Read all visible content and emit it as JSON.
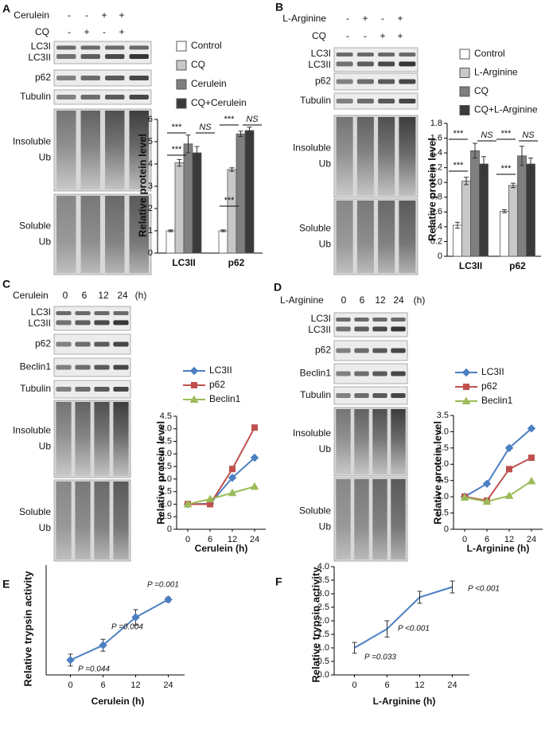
{
  "chart_data": [
    {
      "panel": "A",
      "type": "bar",
      "ylabel": "Relative protein level",
      "categories": [
        "LC3II",
        "p62"
      ],
      "series": [
        {
          "name": "Control",
          "color": "#ffffff",
          "values": [
            1.0,
            1.0
          ],
          "errors": [
            0.04,
            0.04
          ]
        },
        {
          "name": "CQ",
          "color": "#c8c8c8",
          "values": [
            4.05,
            3.75
          ],
          "errors": [
            0.15,
            0.08
          ]
        },
        {
          "name": "Cerulein",
          "color": "#7f7f7f",
          "values": [
            4.9,
            5.35
          ],
          "errors": [
            0.4,
            0.12
          ]
        },
        {
          "name": "CQ+Cerulein",
          "color": "#3a3a3a",
          "values": [
            4.5,
            5.5
          ],
          "errors": [
            0.28,
            0.15
          ]
        }
      ],
      "ylim": [
        0,
        6
      ],
      "yticks": [
        0,
        1,
        2,
        3,
        4,
        5,
        6
      ],
      "annotations": [
        "***",
        "***",
        "NS",
        "***",
        "***",
        "NS"
      ]
    },
    {
      "panel": "B",
      "type": "bar",
      "ylabel": "Relative protein level",
      "categories": [
        "LC3II",
        "p62"
      ],
      "series": [
        {
          "name": "Control",
          "color": "#ffffff",
          "values": [
            0.42,
            0.61
          ],
          "errors": [
            0.04,
            0.02
          ]
        },
        {
          "name": "L-Arginine",
          "color": "#c8c8c8",
          "values": [
            1.02,
            0.96
          ],
          "errors": [
            0.05,
            0.03
          ]
        },
        {
          "name": "CQ",
          "color": "#7f7f7f",
          "values": [
            1.43,
            1.36
          ],
          "errors": [
            0.1,
            0.13
          ]
        },
        {
          "name": "CQ+L-Arginine",
          "color": "#3a3a3a",
          "values": [
            1.25,
            1.25
          ],
          "errors": [
            0.1,
            0.08
          ]
        }
      ],
      "ylim": [
        0,
        1.8
      ],
      "yticks": [
        0,
        0.2,
        0.4,
        0.6,
        0.8,
        {
          "value": 1,
          "label": "1.0"
        },
        1.2,
        1.4,
        1.6,
        1.8
      ],
      "annotations": [
        "***",
        "***",
        "NS",
        "***",
        "***",
        "NS"
      ]
    },
    {
      "panel": "C",
      "type": "line",
      "ylabel": "Relative protein level",
      "xlabel": "Cerulein (h)",
      "categories": [
        "0",
        "6",
        "12",
        "24"
      ],
      "series": [
        {
          "name": "LC3II",
          "color": "#4a7fc1",
          "marker": "diamond",
          "values": [
            1.0,
            1.02,
            2.05,
            2.85
          ]
        },
        {
          "name": "p62",
          "color": "#c0504d",
          "marker": "square",
          "values": [
            1.0,
            1.0,
            2.4,
            4.05
          ]
        },
        {
          "name": "Beclin1",
          "color": "#9bbb59",
          "marker": "triangle",
          "values": [
            1.0,
            1.2,
            1.45,
            1.7
          ]
        }
      ],
      "ylim": [
        0,
        4.5
      ],
      "yticks": [
        0,
        0.5,
        {
          "value": 1,
          "label": "1.0"
        },
        1.5,
        {
          "value": 2,
          "label": "2.0"
        },
        2.5,
        {
          "value": 3,
          "label": "3.0"
        },
        3.5,
        {
          "value": 4,
          "label": "4.0"
        },
        4.5
      ]
    },
    {
      "panel": "D",
      "type": "line",
      "ylabel": "Relative protein level",
      "xlabel": "L-Arginine (h)",
      "categories": [
        "0",
        "6",
        "12",
        "24"
      ],
      "series": [
        {
          "name": "LC3II",
          "color": "#4a7fc1",
          "marker": "diamond",
          "values": [
            1.0,
            1.4,
            2.5,
            3.1
          ]
        },
        {
          "name": "p62",
          "color": "#c0504d",
          "marker": "square",
          "values": [
            1.0,
            0.88,
            1.85,
            2.2
          ]
        },
        {
          "name": "Beclin1",
          "color": "#9bbb59",
          "marker": "triangle",
          "values": [
            0.98,
            0.85,
            1.03,
            1.48
          ]
        }
      ],
      "ylim": [
        0,
        3.5
      ],
      "yticks": [
        0,
        0.5,
        {
          "value": 1,
          "label": "1.0"
        },
        1.5,
        {
          "value": 2,
          "label": "2.0"
        },
        2.5,
        {
          "value": 3,
          "label": "3.0"
        },
        3.5
      ]
    },
    {
      "panel": "E",
      "type": "line",
      "ylabel": "Relative trypsin activity",
      "xlabel": "Cerulein (h)",
      "categories": [
        "0",
        "6",
        "12",
        "24"
      ],
      "series": [
        {
          "color": "#4a7fc1",
          "marker": "diamond",
          "values": [
            1.0,
            1.25,
            1.72,
            2.02
          ],
          "errors": [
            0.1,
            0.1,
            0.13,
            0.04
          ]
        }
      ],
      "ylim": [
        0.75,
        2.6
      ],
      "annotations": [
        "P =0.044",
        "P =0.004",
        "P =0.001"
      ]
    },
    {
      "panel": "F",
      "type": "line",
      "ylabel": "Relative trypsin activity",
      "xlabel": "L-Arginine (h)",
      "categories": [
        "0",
        "6",
        "12",
        "24"
      ],
      "series": [
        {
          "color": "#4a7fc1",
          "marker": "none",
          "values": [
            1.0,
            1.7,
            2.87,
            3.25
          ],
          "errors": [
            0.2,
            0.3,
            0.22,
            0.22
          ]
        }
      ],
      "ylim": [
        0,
        4
      ],
      "yticks": [
        {
          "value": 0,
          "label": "0.0"
        },
        0.5,
        {
          "value": 1,
          "label": "1.0"
        },
        1.5,
        {
          "value": 2,
          "label": "2.0"
        },
        2.5,
        {
          "value": 3,
          "label": "3.0"
        },
        3.5,
        {
          "value": 4,
          "label": "4.0"
        }
      ],
      "annotations": [
        "P =0.033",
        "P <0.001",
        "P <0.001"
      ]
    }
  ],
  "blots": [
    {
      "treatments": [
        {
          "name": "Cerulein",
          "lanes": [
            "-",
            "-",
            "+",
            "+"
          ]
        },
        {
          "name": "CQ",
          "lanes": [
            "-",
            "+",
            "-",
            "+"
          ]
        }
      ],
      "rows": [
        [
          "LC3I",
          "LC3II"
        ],
        [
          "p62"
        ],
        [
          "Tubulin"
        ],
        [
          "Insoluble",
          "Ub"
        ],
        [
          "Soluble",
          "Ub"
        ]
      ]
    },
    {
      "treatments": [
        {
          "name": "L-Arginine",
          "lanes": [
            "-",
            "+",
            "-",
            "+"
          ]
        },
        {
          "name": "CQ",
          "lanes": [
            "-",
            "-",
            "+",
            "+"
          ]
        }
      ],
      "rows": [
        [
          "LC3I",
          "LC3II"
        ],
        [
          "p62"
        ],
        [
          "Tubulin"
        ],
        [
          "Insoluble",
          "Ub"
        ],
        [
          "Soluble",
          "Ub"
        ]
      ]
    },
    {
      "treatments": [
        {
          "name": "Cerulein",
          "lanes": [
            "0",
            "6",
            "12",
            "24"
          ],
          "unit": "(h)"
        }
      ],
      "rows": [
        [
          "LC3I",
          "LC3II"
        ],
        [
          "p62"
        ],
        [
          "Beclin1"
        ],
        [
          "Tubulin"
        ],
        [
          "Insoluble",
          "Ub"
        ],
        [
          "Soluble",
          "Ub"
        ]
      ]
    },
    {
      "treatments": [
        {
          "name": "L-Arginine",
          "lanes": [
            "0",
            "6",
            "12",
            "24"
          ],
          "unit": "(h)"
        }
      ],
      "rows": [
        [
          "LC3I",
          "LC3II"
        ],
        [
          "p62"
        ],
        [
          "Beclin1"
        ],
        [
          "Tubulin"
        ],
        [
          "Insoluble",
          "Ub"
        ],
        [
          "Soluble",
          "Ub"
        ]
      ]
    }
  ]
}
